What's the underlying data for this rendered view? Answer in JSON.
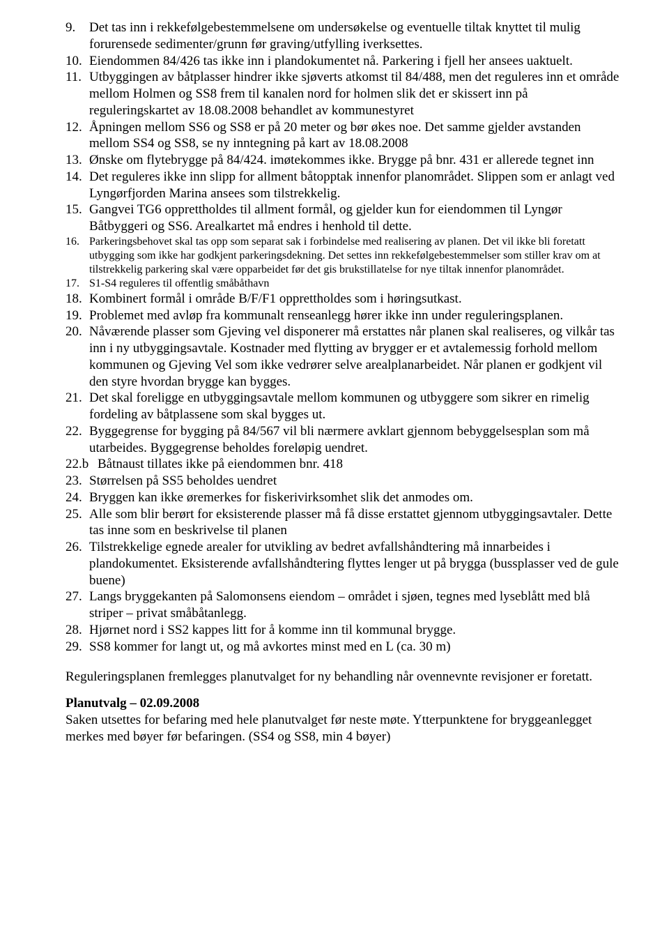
{
  "items": [
    {
      "n": "9.",
      "t": "Det tas inn i rekkefølgebestemmelsene om undersøkelse og eventuelle tiltak knyttet til mulig forurensede sedimenter/grunn før graving/utfylling iverksettes."
    },
    {
      "n": "10.",
      "t": "Eiendommen 84/426 tas ikke inn i plandokumentet nå. Parkering i fjell her ansees uaktuelt."
    },
    {
      "n": "11.",
      "t": "Utbyggingen av båtplasser hindrer ikke sjøverts atkomst til 84/488, men det reguleres inn et område mellom Holmen og SS8 frem til kanalen nord for holmen slik det er skissert inn på reguleringskartet av 18.08.2008 behandlet av kommunestyret"
    },
    {
      "n": "12.",
      "t": "Åpningen mellom SS6 og SS8 er på 20 meter og bør økes noe. Det samme gjelder avstanden mellom SS4 og SS8, se ny inntegning på kart av 18.08.2008"
    },
    {
      "n": "13.",
      "t": "Ønske om flytebrygge på 84/424. imøtekommes ikke. Brygge på bnr. 431 er allerede tegnet inn"
    },
    {
      "n": "14.",
      "t": "Det reguleres ikke inn slipp for allment båtopptak innenfor planområdet. Slippen som er anlagt ved Lyngørfjorden Marina ansees som tilstrekkelig."
    },
    {
      "n": "15.",
      "t": "Gangvei TG6 opprettholdes til allment formål, og gjelder kun for eiendommen til Lyngør Båtbyggeri og SS6. Arealkartet må endres i henhold til dette."
    },
    {
      "n": "16.",
      "t": "Parkeringsbehovet skal tas opp som separat sak i forbindelse med realisering av planen. Det vil ikke bli foretatt utbygging som ikke har godkjent parkeringsdekning. Det settes inn rekkefølgebestemmelser som stiller krav om at tilstrekkelig parkering skal være opparbeidet før det gis brukstillatelse for nye tiltak innenfor planområdet.",
      "small": true
    },
    {
      "n": "17.",
      "t": "S1-S4 reguleres til offentlig småbåthavn",
      "small": true
    },
    {
      "n": "18.",
      "t": "Kombinert formål i område B/F/F1 opprettholdes som i høringsutkast."
    },
    {
      "n": "19.",
      "t": "Problemet med avløp fra kommunalt renseanlegg hører ikke inn under reguleringsplanen."
    },
    {
      "n": "20.",
      "t": "Nåværende plasser som Gjeving vel disponerer må erstattes når planen skal realiseres, og vilkår tas inn i ny utbyggingsavtale. Kostnader med flytting av brygger er et avtalemessig forhold mellom kommunen og Gjeving Vel som ikke vedrører selve arealplanarbeidet. Når planen er godkjent vil den styre hvordan brygge kan bygges."
    },
    {
      "n": "21.",
      "t": "Det skal foreligge en utbyggingsavtale mellom kommunen og utbyggere som sikrer en rimelig fordeling av båtplassene som skal bygges ut."
    },
    {
      "n": "22.",
      "t": "Byggegrense for bygging på 84/567 vil bli nærmere avklart gjennom bebyggelsesplan som må utarbeides. Byggegrense beholdes foreløpig uendret."
    },
    {
      "n": "22.b",
      "t": "Båtnaust tillates ikke på eiendommen bnr. 418",
      "wide": true
    },
    {
      "n": "23.",
      "t": "Størrelsen på SS5  beholdes uendret"
    },
    {
      "n": "24.",
      "t": "Bryggen kan ikke øremerkes for fiskerivirksomhet slik det anmodes om."
    },
    {
      "n": "25.",
      "t": "Alle som blir berørt for eksisterende plasser må få disse erstattet gjennom utbyggingsavtaler. Dette tas inne som en beskrivelse til planen"
    },
    {
      "n": "26.",
      "t": "Tilstrekkelige egnede arealer for utvikling av bedret avfallshåndtering må innarbeides i plandokumentet. Eksisterende avfallshåndtering flyttes lenger ut på brygga (bussplasser ved de gule buene)"
    },
    {
      "n": "27.",
      "t": "Langs bryggekanten på Salomonsens eiendom – området i sjøen, tegnes med lyseblått med blå striper – privat småbåtanlegg."
    },
    {
      "n": "28.",
      "t": "Hjørnet nord i SS2 kappes litt for å komme inn til kommunal brygge."
    },
    {
      "n": "29.",
      "t": "SS8 kommer for langt ut, og må avkortes minst med en L (ca. 30 m)"
    }
  ],
  "closing": "Reguleringsplanen fremlegges planutvalget for ny behandling når ovennevnte revisjoner er foretatt.",
  "section_heading": "Planutvalg – 02.09.2008",
  "section_body": "Saken utsettes for befaring med hele planutvalget før neste møte. Ytterpunktene for bryggeanlegget merkes med bøyer før befaringen. (SS4 og SS8, min 4 bøyer)"
}
